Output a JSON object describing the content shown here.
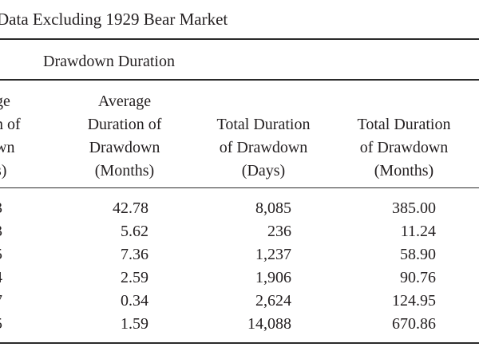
{
  "caption": "Data Excluding 1929 Bear Market",
  "group_header": "Drawdown Duration",
  "columns": [
    {
      "lines": [
        "ge",
        "n of",
        "wn",
        "s)"
      ]
    },
    {
      "lines": [
        "Average",
        "Duration of",
        "Drawdown",
        "(Months)"
      ]
    },
    {
      "lines": [
        "Total Duration",
        "of Drawdown",
        "(Days)"
      ]
    },
    {
      "lines": [
        "Total Duration",
        "of Drawdown",
        "(Months)"
      ]
    }
  ],
  "rows": [
    [
      "3",
      "42.78",
      "8,085",
      "385.00"
    ],
    [
      "3",
      "5.62",
      "236",
      "11.24"
    ],
    [
      "5",
      "7.36",
      "1,237",
      "58.90"
    ],
    [
      "4",
      "2.59",
      "1,906",
      "90.76"
    ],
    [
      "7",
      "0.34",
      "2,624",
      "124.95"
    ],
    [
      "5",
      "1.59",
      "14,088",
      "670.86"
    ]
  ]
}
